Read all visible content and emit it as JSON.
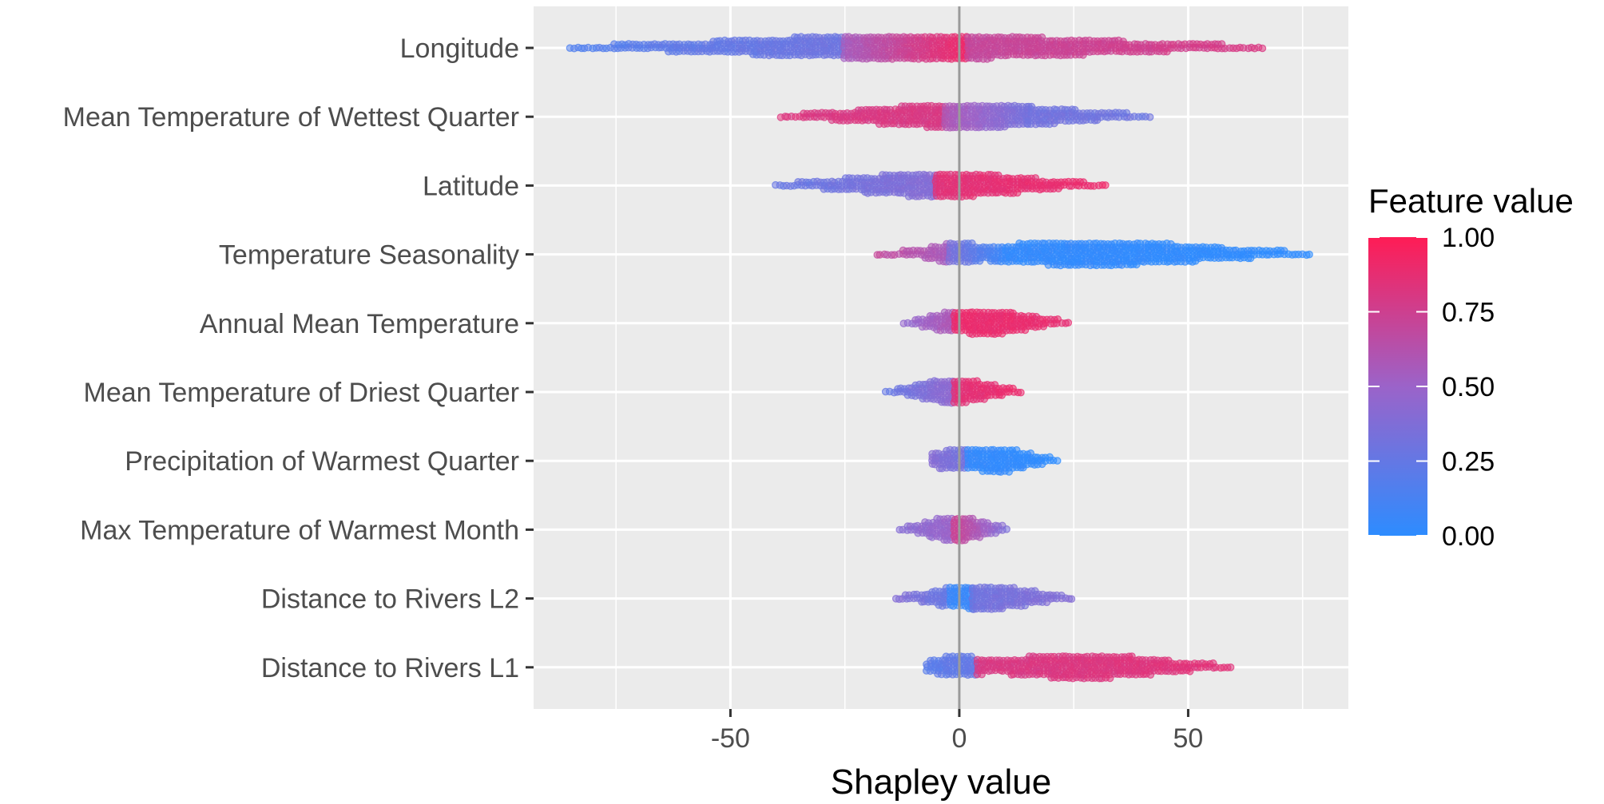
{
  "chart_data": {
    "type": "scatter",
    "subtype": "beeswarm",
    "title": "",
    "xlabel": "Shapley value",
    "ylabel": "",
    "xlim": [
      -93,
      85
    ],
    "x_ticks": [
      -50,
      0,
      50
    ],
    "x_tick_labels": [
      "-50",
      "0",
      "50"
    ],
    "zero_line": 0,
    "grid": true,
    "features": [
      {
        "label": "Longitude",
        "min": -85,
        "max": 67,
        "segments": [
          {
            "from": -85,
            "to": -65,
            "color_from": 0.15,
            "color_to": 0.22
          },
          {
            "from": -65,
            "to": -25,
            "color_from": 0.22,
            "color_to": 0.3
          },
          {
            "from": -25,
            "to": 2,
            "color_from": 0.55,
            "color_to": 0.92
          },
          {
            "from": 2,
            "to": 67,
            "color_from": 0.7,
            "color_to": 0.8
          }
        ]
      },
      {
        "label": "Mean Temperature of Wettest Quarter",
        "min": -39,
        "max": 42,
        "segments": [
          {
            "from": -39,
            "to": -3,
            "color_from": 0.82,
            "color_to": 0.8
          },
          {
            "from": -3,
            "to": 15,
            "color_from": 0.6,
            "color_to": 0.32
          },
          {
            "from": 15,
            "to": 42,
            "color_from": 0.32,
            "color_to": 0.28
          }
        ]
      },
      {
        "label": "Latitude",
        "min": -40,
        "max": 32,
        "segments": [
          {
            "from": -40,
            "to": -5,
            "color_from": 0.25,
            "color_to": 0.4
          },
          {
            "from": -5,
            "to": 32,
            "color_from": 0.85,
            "color_to": 0.9
          }
        ]
      },
      {
        "label": "Temperature Seasonality",
        "min": -18,
        "max": 77,
        "segments": [
          {
            "from": -18,
            "to": -2,
            "color_from": 0.7,
            "color_to": 0.55
          },
          {
            "from": -2,
            "to": 10,
            "color_from": 0.35,
            "color_to": 0.05
          },
          {
            "from": 10,
            "to": 77,
            "color_from": 0.03,
            "color_to": 0.0
          }
        ]
      },
      {
        "label": "Annual Mean Temperature",
        "min": -12,
        "max": 24,
        "segments": [
          {
            "from": -12,
            "to": -1,
            "color_from": 0.45,
            "color_to": 0.6
          },
          {
            "from": -1,
            "to": 24,
            "color_from": 0.9,
            "color_to": 0.88
          }
        ]
      },
      {
        "label": "Mean Temperature of Driest Quarter",
        "min": -16,
        "max": 14,
        "segments": [
          {
            "from": -16,
            "to": -1,
            "color_from": 0.25,
            "color_to": 0.45
          },
          {
            "from": -1,
            "to": 14,
            "color_from": 0.85,
            "color_to": 0.9
          }
        ]
      },
      {
        "label": "Precipitation of Warmest Quarter",
        "min": -6,
        "max": 22,
        "segments": [
          {
            "from": -6,
            "to": 2,
            "color_from": 0.4,
            "color_to": 0.3
          },
          {
            "from": 2,
            "to": 22,
            "color_from": 0.03,
            "color_to": 0.0
          }
        ]
      },
      {
        "label": "Max Temperature of Warmest Month",
        "min": -13,
        "max": 11,
        "segments": [
          {
            "from": -13,
            "to": -1,
            "color_from": 0.4,
            "color_to": 0.5
          },
          {
            "from": -1,
            "to": 11,
            "color_from": 0.75,
            "color_to": 0.35
          }
        ]
      },
      {
        "label": "Distance to Rivers L2",
        "min": -14,
        "max": 25,
        "segments": [
          {
            "from": -14,
            "to": -2,
            "color_from": 0.4,
            "color_to": 0.25
          },
          {
            "from": -2,
            "to": 3,
            "color_from": 0.05,
            "color_to": 0.05
          },
          {
            "from": 3,
            "to": 25,
            "color_from": 0.3,
            "color_to": 0.4
          }
        ]
      },
      {
        "label": "Distance to Rivers L1",
        "min": -7,
        "max": 60,
        "segments": [
          {
            "from": -7,
            "to": 4,
            "color_from": 0.2,
            "color_to": 0.25
          },
          {
            "from": 4,
            "to": 60,
            "color_from": 0.8,
            "color_to": 0.85
          }
        ]
      }
    ],
    "legend": {
      "title": "Feature value",
      "placement": "right",
      "min": 0,
      "max": 1,
      "ticks": [
        0,
        0.25,
        0.5,
        0.75,
        1
      ],
      "tick_labels": [
        "0.00",
        "0.25",
        "0.50",
        "0.75",
        "1.00"
      ],
      "color_low": "#2d8cff",
      "color_mid": "#9b63c9",
      "color_high": "#ff1c55"
    },
    "colors": {
      "panel_background": "#ebebeb",
      "grid": "#ffffff",
      "zero_line": "#9a9a9a"
    }
  }
}
